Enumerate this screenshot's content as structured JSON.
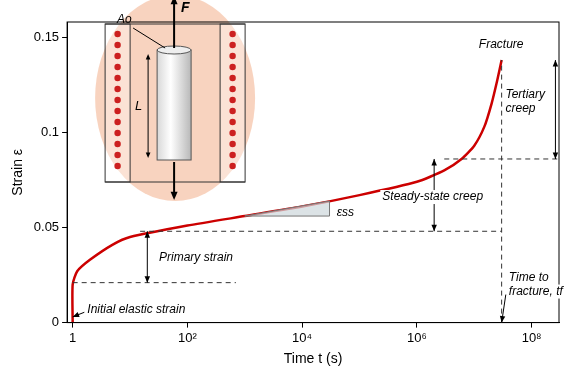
{
  "chart_data": {
    "type": "line",
    "x_label": "Time t (s)",
    "y_label": "Strain ε",
    "color": "#cc0000",
    "log": "x",
    "grid": false,
    "xlim": [
      0.8,
      300000000
    ],
    "ylim": [
      0,
      0.158
    ],
    "xticks": [
      1,
      {
        "value": 100,
        "label": "10²"
      },
      {
        "value": 10000,
        "label": "10⁴"
      },
      {
        "value": 1000000,
        "label": "10⁶"
      },
      {
        "value": 100000000,
        "label": "10⁸"
      }
    ],
    "yticks": [
      0,
      0.05,
      0.1,
      0.15
    ],
    "x": [
      1,
      1,
      1.2,
      2,
      5,
      10,
      100,
      1000,
      10000,
      100000,
      1000000,
      3000000,
      6000000,
      10000000,
      15000000,
      20000000,
      25000000,
      30000000
    ],
    "values": [
      0,
      0.02,
      0.027,
      0.033,
      0.041,
      0.045,
      0.051,
      0.056,
      0.061,
      0.067,
      0.074,
      0.08,
      0.086,
      0.093,
      0.103,
      0.115,
      0.127,
      0.138
    ],
    "reference_lines": [
      {
        "y": 0.021,
        "x": [
          1,
          700
        ],
        "line_style": "dashed"
      },
      {
        "y": 0.048,
        "x": [
          15,
          30000000
        ],
        "line_style": "dashed"
      },
      {
        "y": 0.086,
        "x": [
          3000000,
          300000000
        ],
        "line_style": "dashed"
      },
      {
        "x": 30000000,
        "y": [
          0,
          0.138
        ],
        "line_style": "dashed"
      }
    ],
    "annotations": [
      {
        "text": "Fracture",
        "x": 12000000,
        "y": 0.146
      },
      {
        "text": "Tertiary\ncreep",
        "x": 35000000,
        "y": 0.116,
        "arrow": {
          "x": 260000000,
          "y": [
            0.086,
            0.138
          ]
        }
      },
      {
        "text": "Steady-state creep",
        "x": 250000,
        "y": 0.066,
        "arrow": {
          "x": 2000000,
          "y": [
            0.048,
            0.086
          ]
        }
      },
      {
        "text": "Primary strain",
        "x": 32,
        "y": 0.034,
        "arrow": {
          "x": 20,
          "y": [
            0.021,
            0.048
          ]
        }
      },
      {
        "text": "Initial elastic strain",
        "x": 1.8,
        "y": 0.007,
        "pointer": {
          "x": 1,
          "y": 0.003
        }
      },
      {
        "text": "Time to\nfracture, tf",
        "x": 40000000,
        "y": 0.02,
        "pointer": {
          "x": 30000000,
          "y": 0
        }
      },
      {
        "text": "εss",
        "x": 40000,
        "y": 0.058,
        "triangle": {
          "x": [
            1000,
            30000
          ],
          "y": [
            0.056,
            0.0639
          ]
        }
      }
    ]
  },
  "inset": {
    "labels": [
      "Ao",
      "F",
      "L"
    ]
  }
}
